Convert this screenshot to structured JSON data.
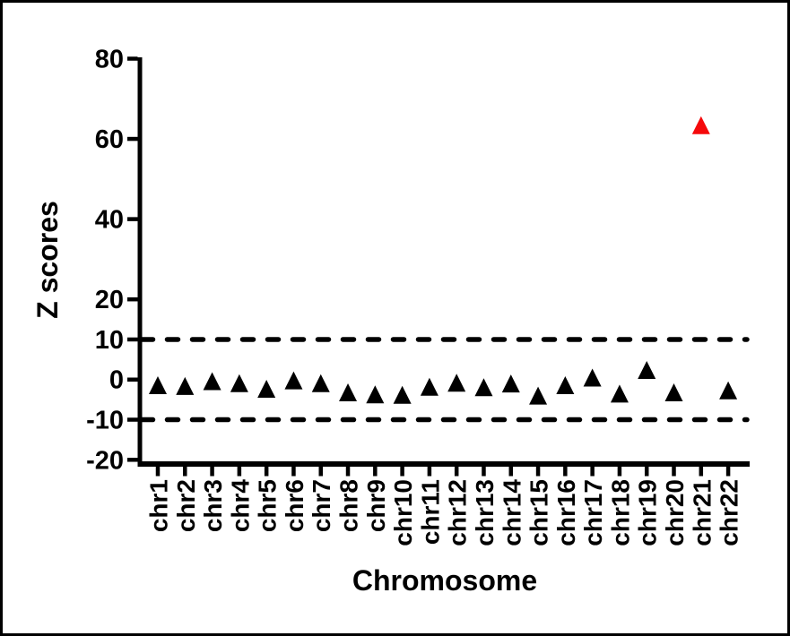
{
  "figure": {
    "background": "#ffffff",
    "border_color": "#000000"
  },
  "chart_data": {
    "type": "scatter",
    "title": "",
    "xlabel": "Chromosome",
    "ylabel": "Z scores",
    "marker": "triangle-up",
    "marker_color_default": "#000000",
    "marker_color_highlight": "#f5090b",
    "highlight_index": 20,
    "categories": [
      "chr1",
      "chr2",
      "chr3",
      "chr4",
      "chr5",
      "chr6",
      "chr7",
      "chr8",
      "chr9",
      "chr10",
      "chr11",
      "chr12",
      "chr13",
      "chr14",
      "chr15",
      "chr16",
      "chr17",
      "chr18",
      "chr19",
      "chr20",
      "chr21",
      "chr22"
    ],
    "values": [
      -1.5,
      -1.7,
      -0.5,
      -1.0,
      -2.4,
      -0.3,
      -1.0,
      -3.3,
      -3.8,
      -3.9,
      -1.9,
      -0.9,
      -2.0,
      -1.1,
      -4.1,
      -1.5,
      0.4,
      -3.6,
      2.3,
      -3.3,
      63.3,
      -2.8
    ],
    "yticks": [
      80,
      60,
      40,
      20,
      10,
      0,
      -10,
      -20
    ],
    "ylim": [
      -20,
      80
    ],
    "threshold_lines": {
      "values": [
        10,
        -10
      ],
      "style": "dashed",
      "color": "#000000"
    },
    "grid": false,
    "legend": false,
    "axis_color": "#000000"
  }
}
